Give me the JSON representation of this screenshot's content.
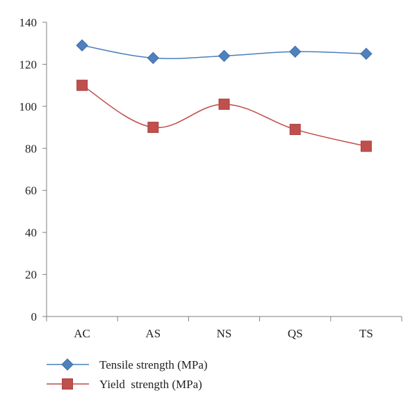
{
  "chart_data": {
    "type": "line",
    "categories": [
      "AC",
      "AS",
      "NS",
      "QS",
      "TS"
    ],
    "ylim": [
      0,
      140
    ],
    "yticks": [
      0,
      20,
      40,
      60,
      80,
      100,
      120,
      140
    ],
    "grid": false,
    "legend_position": "bottom-left",
    "title": "",
    "xlabel": "",
    "ylabel": "",
    "series": [
      {
        "name": "Tensile strength (MPa)",
        "values": [
          129,
          123,
          124,
          126,
          125
        ],
        "color": "#4a7ebb",
        "marker": "diamond",
        "marker_color": "#4f81bd"
      },
      {
        "name": "Yield  strength (MPa)",
        "values": [
          110,
          90,
          101,
          89,
          81
        ],
        "color": "#be4b48",
        "marker": "square",
        "marker_color": "#c0504d"
      }
    ]
  }
}
